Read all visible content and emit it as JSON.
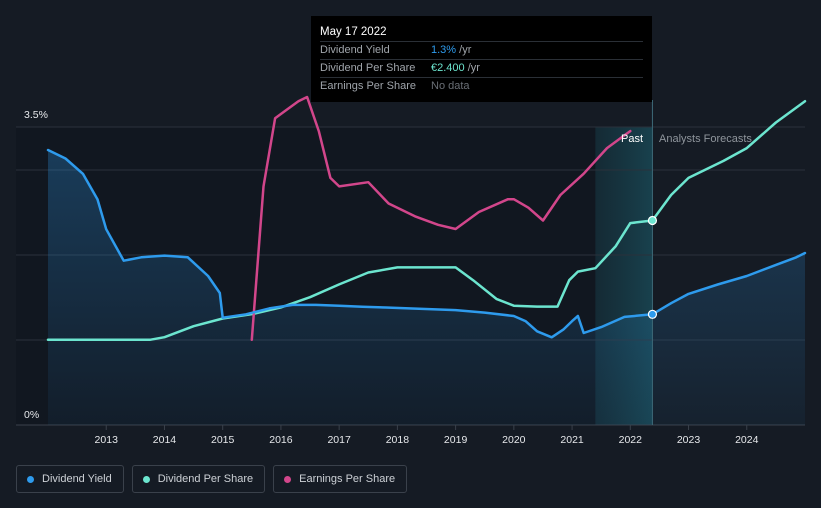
{
  "tooltip": {
    "date": "May 17 2022",
    "rows": [
      {
        "label": "Dividend Yield",
        "value": "1.3%",
        "unit": " /yr",
        "color": "#2e9bed"
      },
      {
        "label": "Dividend Per Share",
        "value": "€2.400",
        "unit": " /yr",
        "color": "#6ce5cf"
      },
      {
        "label": "Earnings Per Share",
        "value": "No data",
        "unit": "",
        "color": "#6a6f76"
      }
    ]
  },
  "legend": [
    {
      "label": "Dividend Yield",
      "color": "#2e9bed"
    },
    {
      "label": "Dividend Per Share",
      "color": "#6ce5cf"
    },
    {
      "label": "Earnings Per Share",
      "color": "#d2468b"
    }
  ],
  "chart_data": {
    "type": "line",
    "y_tick_labels": [
      "3.5%",
      "0%"
    ],
    "x_tick_labels": [
      "2013",
      "2014",
      "2015",
      "2016",
      "2017",
      "2018",
      "2019",
      "2020",
      "2021",
      "2022",
      "2023",
      "2024"
    ],
    "x_range": [
      2012.0,
      2025.0
    ],
    "y_range_percent": [
      0,
      3.5
    ],
    "past_label": "Past",
    "forecast_label": "Analysts Forecasts",
    "past_region": [
      2021.4,
      2022.38
    ],
    "colors": {
      "yield": "#2e9bed",
      "dps": "#6ce5cf",
      "eps": "#d2468b",
      "background": "#151b24",
      "grid": "#2a313b"
    },
    "series": [
      {
        "name": "Dividend Yield",
        "unit": "%",
        "key": "yield",
        "points": [
          [
            2012.0,
            3.23
          ],
          [
            2012.3,
            3.13
          ],
          [
            2012.6,
            2.95
          ],
          [
            2012.85,
            2.65
          ],
          [
            2013.0,
            2.3
          ],
          [
            2013.3,
            1.93
          ],
          [
            2013.6,
            1.97
          ],
          [
            2014.0,
            1.99
          ],
          [
            2014.4,
            1.97
          ],
          [
            2014.75,
            1.75
          ],
          [
            2014.95,
            1.55
          ],
          [
            2015.0,
            1.26
          ],
          [
            2015.4,
            1.3
          ],
          [
            2015.8,
            1.37
          ],
          [
            2016.2,
            1.41
          ],
          [
            2016.6,
            1.41
          ],
          [
            2017.0,
            1.4
          ],
          [
            2017.4,
            1.39
          ],
          [
            2017.8,
            1.38
          ],
          [
            2018.2,
            1.37
          ],
          [
            2018.6,
            1.36
          ],
          [
            2019.0,
            1.35
          ],
          [
            2019.5,
            1.32
          ],
          [
            2020.0,
            1.28
          ],
          [
            2020.2,
            1.22
          ],
          [
            2020.4,
            1.1
          ],
          [
            2020.65,
            1.03
          ],
          [
            2020.85,
            1.12
          ],
          [
            2021.0,
            1.22
          ],
          [
            2021.1,
            1.28
          ],
          [
            2021.2,
            1.08
          ],
          [
            2021.5,
            1.15
          ],
          [
            2021.9,
            1.27
          ],
          [
            2022.38,
            1.3
          ],
          [
            2022.7,
            1.43
          ],
          [
            2023.0,
            1.54
          ],
          [
            2023.5,
            1.65
          ],
          [
            2024.0,
            1.75
          ],
          [
            2024.5,
            1.88
          ],
          [
            2024.85,
            1.97
          ],
          [
            2025.0,
            2.02
          ]
        ]
      },
      {
        "name": "Dividend Per Share",
        "unit": "€",
        "key": "dps",
        "points": [
          [
            2012.0,
            1.0
          ],
          [
            2013.0,
            1.0
          ],
          [
            2013.75,
            1.0
          ],
          [
            2014.0,
            1.03
          ],
          [
            2014.5,
            1.16
          ],
          [
            2015.0,
            1.25
          ],
          [
            2015.5,
            1.3
          ],
          [
            2016.0,
            1.38
          ],
          [
            2016.5,
            1.5
          ],
          [
            2017.0,
            1.65
          ],
          [
            2017.5,
            1.79
          ],
          [
            2018.0,
            1.85
          ],
          [
            2018.5,
            1.85
          ],
          [
            2019.0,
            1.85
          ],
          [
            2019.3,
            1.7
          ],
          [
            2019.7,
            1.48
          ],
          [
            2020.0,
            1.4
          ],
          [
            2020.4,
            1.39
          ],
          [
            2020.75,
            1.39
          ],
          [
            2020.95,
            1.7
          ],
          [
            2021.1,
            1.8
          ],
          [
            2021.4,
            1.84
          ],
          [
            2021.75,
            2.1
          ],
          [
            2022.0,
            2.37
          ],
          [
            2022.38,
            2.4
          ],
          [
            2022.7,
            2.7
          ],
          [
            2023.0,
            2.9
          ],
          [
            2023.6,
            3.1
          ],
          [
            2024.0,
            3.25
          ],
          [
            2024.5,
            3.55
          ],
          [
            2025.0,
            3.8
          ]
        ]
      },
      {
        "name": "Earnings Per Share",
        "unit": "€",
        "key": "eps",
        "points": [
          [
            2015.5,
            1.0
          ],
          [
            2015.7,
            2.8
          ],
          [
            2015.9,
            3.6
          ],
          [
            2016.1,
            3.7
          ],
          [
            2016.3,
            3.8
          ],
          [
            2016.45,
            3.85
          ],
          [
            2016.65,
            3.45
          ],
          [
            2016.85,
            2.9
          ],
          [
            2017.0,
            2.8
          ],
          [
            2017.5,
            2.85
          ],
          [
            2017.85,
            2.6
          ],
          [
            2018.3,
            2.45
          ],
          [
            2018.7,
            2.35
          ],
          [
            2019.0,
            2.3
          ],
          [
            2019.4,
            2.5
          ],
          [
            2019.9,
            2.65
          ],
          [
            2020.0,
            2.65
          ],
          [
            2020.25,
            2.55
          ],
          [
            2020.5,
            2.4
          ],
          [
            2020.8,
            2.7
          ],
          [
            2021.2,
            2.95
          ],
          [
            2021.6,
            3.25
          ],
          [
            2021.9,
            3.4
          ],
          [
            2022.0,
            3.45
          ]
        ]
      }
    ]
  }
}
